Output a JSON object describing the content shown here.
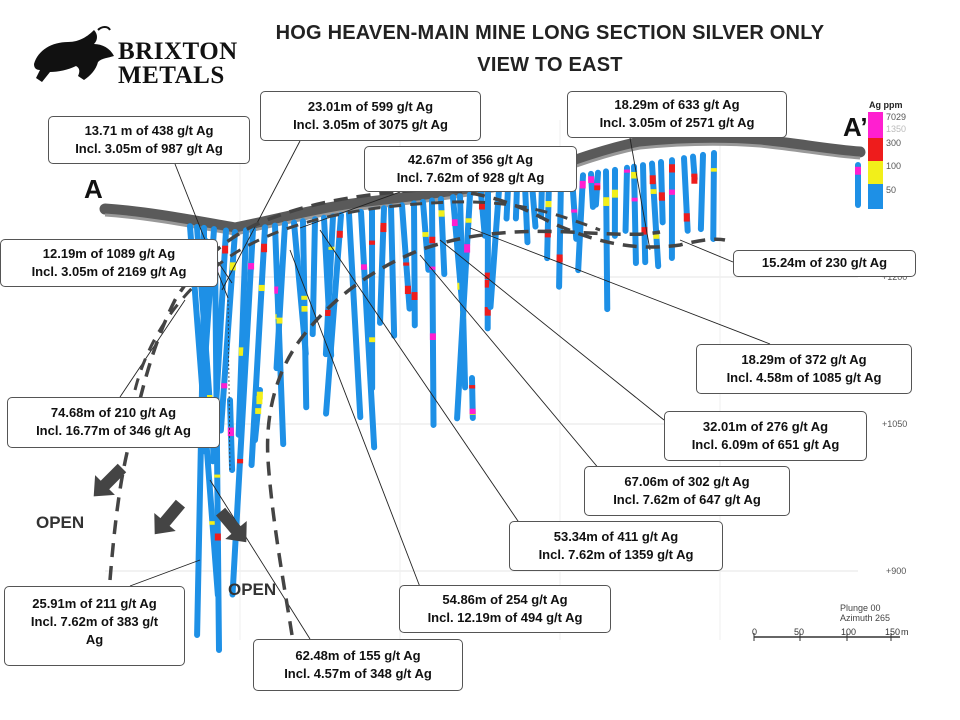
{
  "title": {
    "line1": "HOG HEAVEN-MAIN MINE LONG SECTION SILVER ONLY",
    "line2": "VIEW TO EAST"
  },
  "logo": {
    "line1": "BRIXTON",
    "line2": "METALS"
  },
  "section": {
    "start": "A",
    "end": "A’"
  },
  "legend": {
    "title": "Ag ppm",
    "items": [
      {
        "label": "7029",
        "color": "#ff1fd0"
      },
      {
        "label": "1350",
        "color": "#ff1fd0"
      },
      {
        "label": "300",
        "color": "#ee1c1c"
      },
      {
        "label": "100",
        "color": "#f2ef1a"
      },
      {
        "label": "50",
        "color": "#1e90e6"
      }
    ]
  },
  "elevations": [
    "+1200",
    "+1050",
    "+900"
  ],
  "open_labels": [
    "OPEN",
    "OPEN"
  ],
  "view": {
    "plunge": "Plunge 00",
    "azimuth": "Azimuth 265"
  },
  "scale": {
    "ticks": [
      "0",
      "50",
      "100",
      "150"
    ],
    "unit": "m"
  },
  "callouts": [
    {
      "line1": "13.71 m of 438 g/t Ag",
      "line2": "Incl. 3.05m of 987 g/t Ag"
    },
    {
      "line1": "23.01m of 599 g/t Ag",
      "line2": "Incl. 3.05m of 3075 g/t Ag"
    },
    {
      "line1": "42.67m of 356 g/t Ag",
      "line2": "Incl. 7.62m of 928 g/t Ag"
    },
    {
      "line1": "18.29m of 633 g/t Ag",
      "line2": "Incl. 3.05m of 2571 g/t Ag"
    },
    {
      "line1": "12.19m of 1089 g/t Ag",
      "line2": "Incl. 3.05m of 2169 g/t Ag"
    },
    {
      "line1": "15.24m of 230 g/t Ag"
    },
    {
      "line1": "18.29m of 372 g/t Ag",
      "line2": "Incl. 4.58m of 1085 g/t Ag"
    },
    {
      "line1": "74.68m of 210 g/t Ag",
      "line2": "Incl. 16.77m of 346 g/t Ag"
    },
    {
      "line1": "32.01m of 276 g/t Ag",
      "line2": "Incl. 6.09m of 651 g/t Ag"
    },
    {
      "line1": "67.06m of 302 g/t Ag",
      "line2": "Incl. 7.62m of 647 g/t Ag"
    },
    {
      "line1": "53.34m of 411 g/t Ag",
      "line2": "Incl. 7.62m of 1359 g/t Ag"
    },
    {
      "line1": "54.86m of 254 g/t Ag",
      "line2": "Incl. 12.19m of 494 g/t Ag"
    },
    {
      "line1": "25.91m of 211 g/t Ag",
      "line2": "Incl. 7.62m of 383 g/t",
      "line3": "Ag"
    },
    {
      "line1": "62.48m of 155 g/t Ag",
      "line2": "Incl. 4.57m of 348 g/t Ag"
    }
  ]
}
